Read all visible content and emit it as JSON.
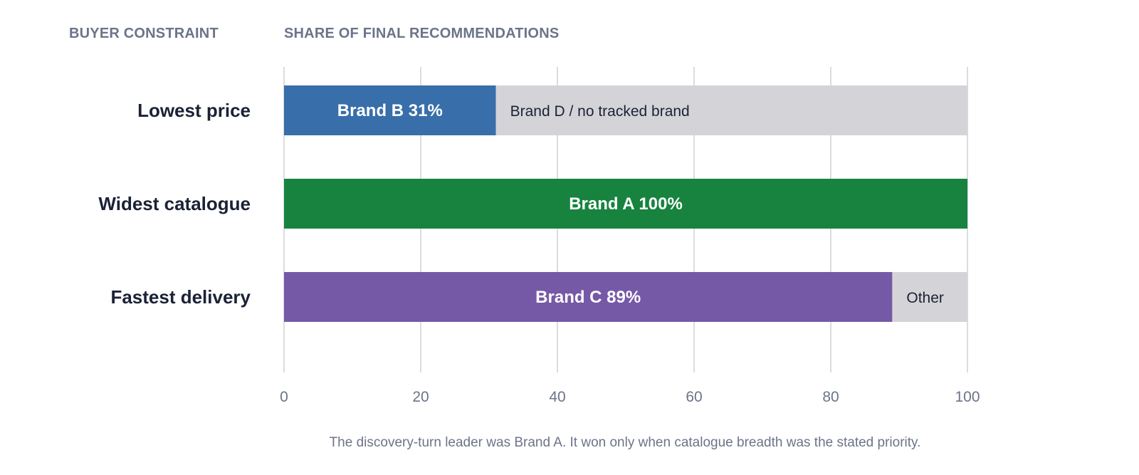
{
  "chart_data": {
    "type": "bar",
    "orientation": "horizontal",
    "stacked": true,
    "category_header": "BUYER CONSTRAINT",
    "value_header": "SHARE OF FINAL RECOMMENDATIONS",
    "categories": [
      "Lowest price",
      "Widest catalogue",
      "Fastest delivery"
    ],
    "series": [
      {
        "role": "leader",
        "values": [
          31,
          100,
          89
        ],
        "labels": [
          "Brand B 31%",
          "Brand A 100%",
          "Brand C 89%"
        ],
        "colors": [
          "#386ea9",
          "#17833f",
          "#7659a6"
        ]
      },
      {
        "role": "remainder",
        "values": [
          69,
          0,
          11
        ],
        "labels": [
          "Brand D / no tracked brand",
          "",
          "Other"
        ],
        "color": "#d4d4d8"
      }
    ],
    "xlim": [
      0,
      100
    ],
    "xticks": [
      0,
      20,
      40,
      60,
      80,
      100
    ],
    "xtick_labels": [
      "0",
      "20",
      "40",
      "60",
      "80",
      "100"
    ],
    "grid": true,
    "footnote": "The discovery-turn leader was Brand A. It won only when catalogue breadth was the stated priority."
  }
}
